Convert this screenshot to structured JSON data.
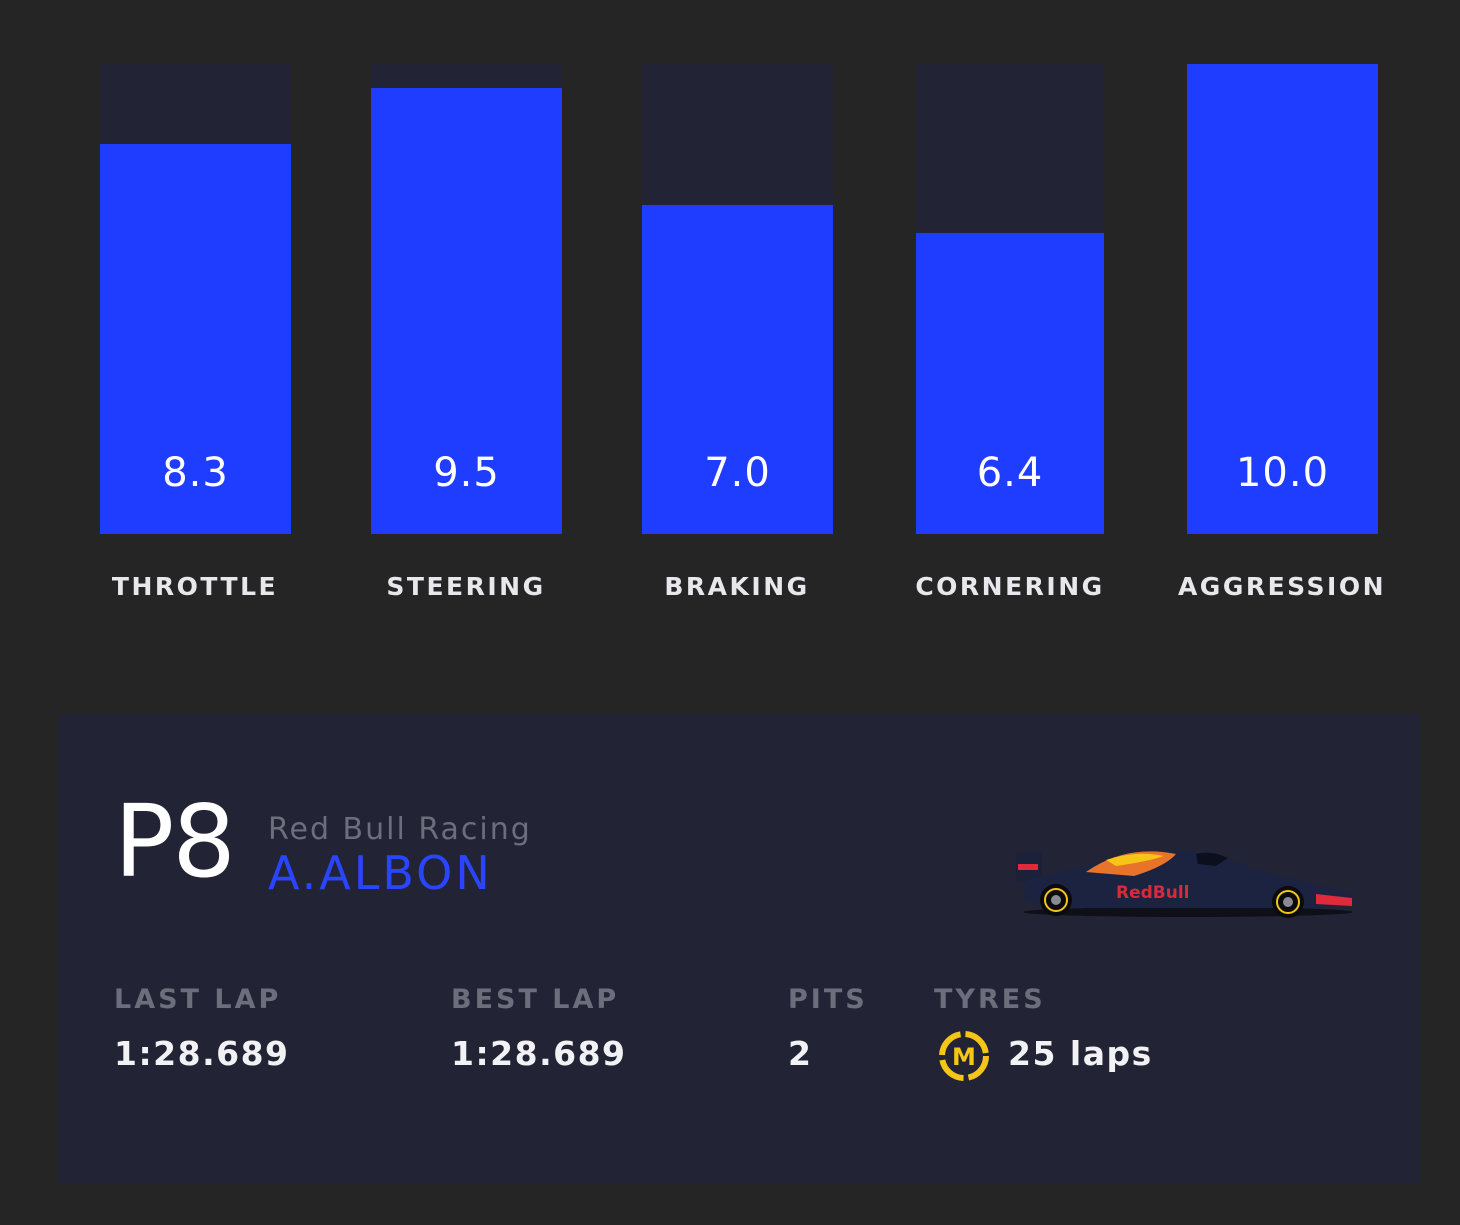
{
  "telemetry": {
    "bars": [
      {
        "label": "THROTTLE",
        "value": "8.3"
      },
      {
        "label": "STEERING",
        "value": "9.5"
      },
      {
        "label": "BRAKING",
        "value": "7.0"
      },
      {
        "label": "CORNERING",
        "value": "6.4"
      },
      {
        "label": "AGGRESSION",
        "value": "10.0"
      }
    ],
    "max_value": 10,
    "colors": {
      "fill": "#1f3dff",
      "track": "#222436"
    }
  },
  "driver_card": {
    "position": "P8",
    "team": "Red Bull Racing",
    "driver": "A.ALBON",
    "car_icon": "red-bull-car-icon",
    "stats": {
      "last_lap": {
        "label": "LAST LAP",
        "value": "1:28.689"
      },
      "best_lap": {
        "label": "BEST LAP",
        "value": "1:28.689"
      },
      "pits": {
        "label": "PITS",
        "value": "2"
      },
      "tyres": {
        "label": "TYRES",
        "compound": "M",
        "value": "25 laps",
        "icon": "medium-tyre-icon",
        "color": "#f5c518"
      }
    }
  }
}
